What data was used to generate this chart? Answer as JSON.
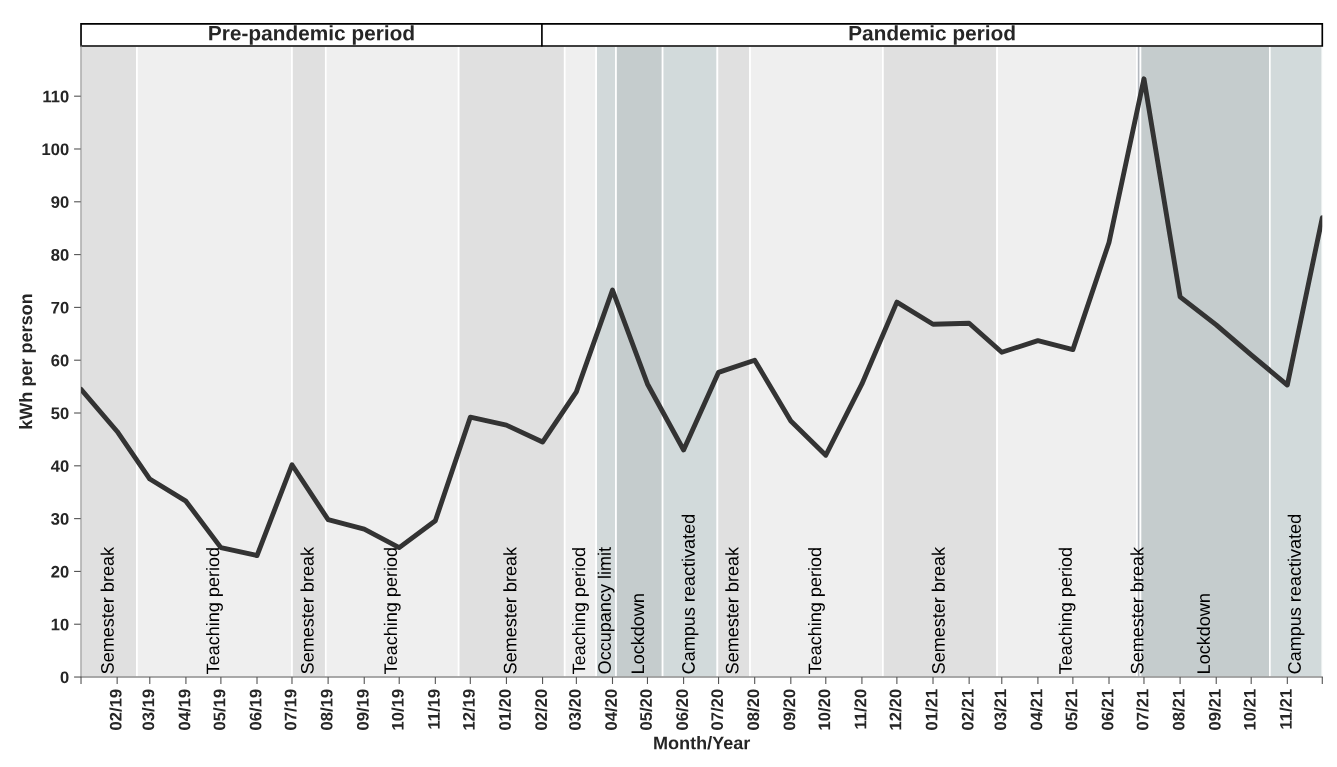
{
  "chart_data": {
    "type": "line",
    "xlabel": "Month/Year",
    "ylabel": "kWh per person",
    "x": [
      "2019-01",
      "2019-02",
      "2019-03",
      "2019-04",
      "2019-05",
      "2019-06",
      "2019-07",
      "2019-08",
      "2019-09",
      "2019-10",
      "2019-11",
      "2019-12",
      "2020-01",
      "2020-02",
      "2020-03",
      "2020-04",
      "2020-05",
      "2020-06",
      "2020-07",
      "2020-08",
      "2020-09",
      "2020-10",
      "2020-11",
      "2020-12",
      "2021-01",
      "2021-02",
      "2021-03",
      "2021-04",
      "2021-05",
      "2021-06",
      "2021-07",
      "2021-08",
      "2021-09",
      "2021-10",
      "2021-11",
      "2021-12"
    ],
    "series": [
      {
        "color": "#333333",
        "values": [
          54.5,
          46.5,
          37.5,
          33.3,
          24.5,
          23,
          40.2,
          29.8,
          28,
          24.5,
          29.6,
          49.2,
          47.7,
          44.5,
          54,
          73.3,
          55.5,
          43,
          57.7,
          60,
          48.5,
          42,
          55.5,
          71,
          66.8,
          67,
          61.5,
          63.7,
          62,
          82.3,
          113.3,
          72,
          66.7,
          61,
          55.3,
          87
        ]
      }
    ],
    "xlim": [
      "2019-01",
      "2021-12"
    ],
    "xticks": [
      {
        "value": "2019-01",
        "label": null
      },
      {
        "value": "2019-02",
        "label": "02/19"
      },
      {
        "value": "2019-03",
        "label": "03/19"
      },
      {
        "value": "2019-04",
        "label": "04/19"
      },
      {
        "value": "2019-05",
        "label": "05/19"
      },
      {
        "value": "2019-06",
        "label": "06/19"
      },
      {
        "value": "2019-07",
        "label": "07/19"
      },
      {
        "value": "2019-08",
        "label": "08/19"
      },
      {
        "value": "2019-09",
        "label": "09/19"
      },
      {
        "value": "2019-10",
        "label": "10/19"
      },
      {
        "value": "2019-11",
        "label": "11/19"
      },
      {
        "value": "2019-12",
        "label": "12/19"
      },
      {
        "value": "2020-01",
        "label": "01/20"
      },
      {
        "value": "2020-02",
        "label": "02/20"
      },
      {
        "value": "2020-03",
        "label": "03/20"
      },
      {
        "value": "2020-04",
        "label": "04/20"
      },
      {
        "value": "2020-05",
        "label": "05/20"
      },
      {
        "value": "2020-06",
        "label": "06/20"
      },
      {
        "value": "2020-07",
        "label": "07/20"
      },
      {
        "value": "2020-08",
        "label": "08/20"
      },
      {
        "value": "2020-09",
        "label": "09/20"
      },
      {
        "value": "2020-10",
        "label": "10/20"
      },
      {
        "value": "2020-11",
        "label": "11/20"
      },
      {
        "value": "2020-12",
        "label": "12/20"
      },
      {
        "value": "2021-01",
        "label": "01/21"
      },
      {
        "value": "2021-02",
        "label": "02/21"
      },
      {
        "value": "2021-03",
        "label": "03/21"
      },
      {
        "value": "2021-04",
        "label": "04/21"
      },
      {
        "value": "2021-05",
        "label": "05/21"
      },
      {
        "value": "2021-06",
        "label": "06/21"
      },
      {
        "value": "2021-07",
        "label": "07/21"
      },
      {
        "value": "2021-08",
        "label": "08/21"
      },
      {
        "value": "2021-09",
        "label": "09/21"
      },
      {
        "value": "2021-10",
        "label": "10/21"
      },
      {
        "value": "2021-11",
        "label": "11/21"
      },
      {
        "value": "2021-12",
        "label": null
      }
    ],
    "annotations": [
      "Pre-pandemic period",
      "Pandemic period"
    ],
    "ylim": [
      0,
      119.5
    ],
    "yticks": [
      0,
      10,
      20,
      30,
      40,
      50,
      60,
      70,
      80,
      90,
      100,
      110
    ],
    "grid": false,
    "bands": [
      {
        "axis": "x",
        "from": "2019-01",
        "to": "2019-02-18",
        "label": "Semester break",
        "color": "#e0e0e0"
      },
      {
        "axis": "x",
        "from": "2019-02-18",
        "to": "2019-07-01",
        "label": "Teaching period",
        "color": "#efefef"
      },
      {
        "axis": "x",
        "from": "2019-07-01",
        "to": "2019-07-30",
        "label": "Semester break",
        "color": "#e0e0e0"
      },
      {
        "axis": "x",
        "from": "2019-07-30",
        "to": "2019-11-21",
        "label": "Teaching period",
        "color": "#efefef"
      },
      {
        "axis": "x",
        "from": "2019-11-21",
        "to": "2020-02-20",
        "label": "Semester break",
        "color": "#e0e0e0"
      },
      {
        "axis": "x",
        "from": "2020-02-20",
        "to": "2020-03-18",
        "label": "Teaching period",
        "color": "#efefef"
      },
      {
        "axis": "x",
        "from": "2020-03-18",
        "to": "2020-04-04",
        "label": "Occupancy limit",
        "color": "#d2d9da"
      },
      {
        "axis": "x",
        "from": "2020-04-04",
        "to": "2020-05-14",
        "label": "Lockdown",
        "color": "#c5cccd"
      },
      {
        "axis": "x",
        "from": "2020-05-14",
        "to": "2020-06-30",
        "label": "Campus reactivated",
        "color": "#d2dadb"
      },
      {
        "axis": "x",
        "from": "2020-06-30",
        "to": "2020-07-28",
        "label": "Semester break",
        "color": "#e0e0e0"
      },
      {
        "axis": "x",
        "from": "2020-07-28",
        "to": "2020-11-19",
        "label": "Teaching period",
        "color": "#efefef"
      },
      {
        "axis": "x",
        "from": "2020-11-19",
        "to": "2021-02-25",
        "label": "Semester break",
        "color": "#e0e0e0"
      },
      {
        "axis": "x",
        "from": "2021-02-25",
        "to": "2021-06-25",
        "label": "Teaching period",
        "color": "#efefef"
      },
      {
        "axis": "x",
        "from": "2021-06-25",
        "to": "2021-06-28",
        "label": "Semester break",
        "color": "#b3b8bf"
      },
      {
        "axis": "x",
        "from": "2021-06-28",
        "to": "2021-10-17",
        "label": "Lockdown",
        "color": "#c5cccd"
      },
      {
        "axis": "x",
        "from": "2021-10-17",
        "to": "2021-12",
        "label": "Campus reactivated",
        "color": "#d2dadb"
      }
    ]
  }
}
